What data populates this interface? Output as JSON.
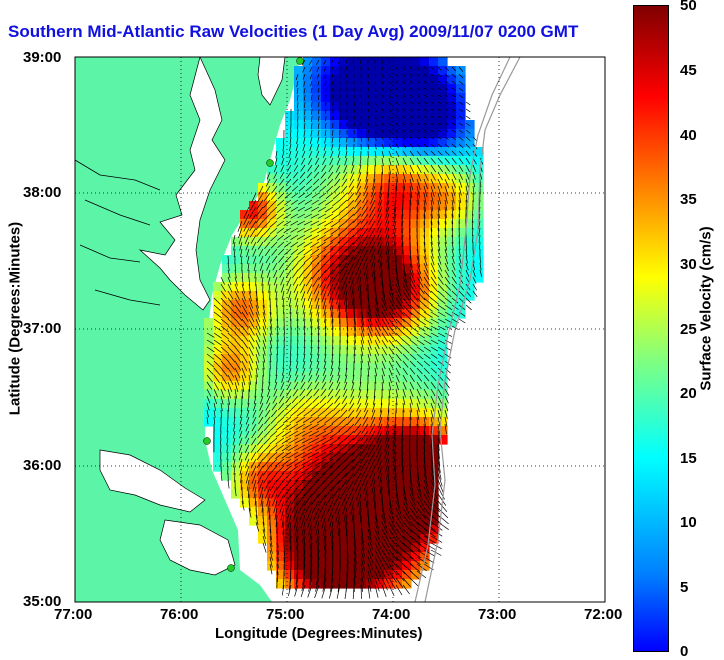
{
  "title": "Southern Mid-Atlantic Raw Velocities (1 Day Avg) 2009/11/07 0200 GMT",
  "axes": {
    "xlabel": "Longitude (Degrees:Minutes)",
    "ylabel": "Latitude (Degrees:Minutes)",
    "x_ticks": [
      "77:00",
      "76:00",
      "75:00",
      "74:00",
      "73:00",
      "72:00"
    ],
    "y_ticks": [
      "39:00",
      "38:00",
      "37:00",
      "36:00",
      "35:00"
    ],
    "xlim": [
      -77,
      -72
    ],
    "ylim": [
      35,
      39
    ],
    "grid": "dotted"
  },
  "colorbar": {
    "label": "Surface Velocity (cm/s)",
    "ticks": [
      "50",
      "45",
      "40",
      "35",
      "30",
      "25",
      "20",
      "15",
      "10",
      "5",
      "0"
    ],
    "range": [
      0,
      50
    ],
    "colormap": "jet"
  },
  "colors": {
    "land": "#5cf5a8",
    "water_background": "#ffffff",
    "title": "#1010e0",
    "coast_line": "#000000",
    "isobath": "#999999",
    "station_marker": "#22cc22"
  }
}
